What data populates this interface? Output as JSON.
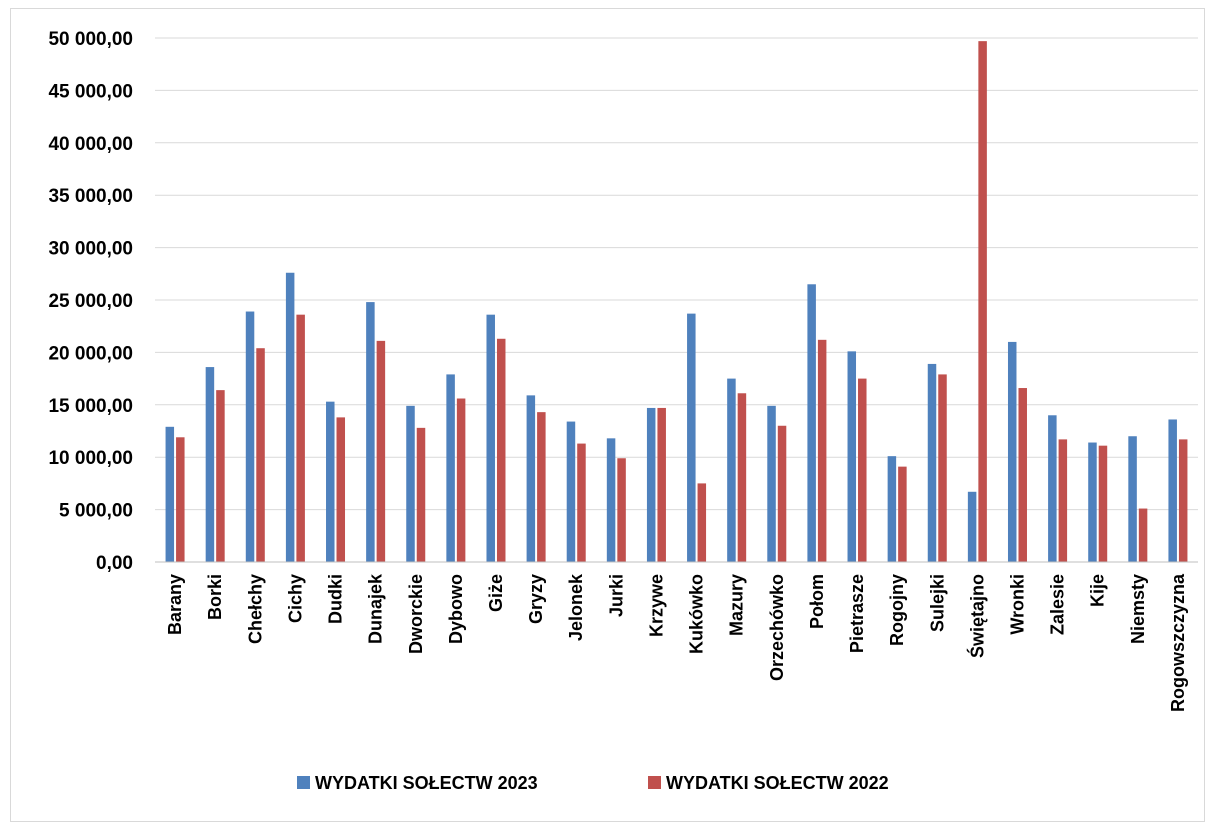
{
  "chart_data": {
    "type": "bar",
    "categories": [
      "Barany",
      "Borki",
      "Chełchy",
      "Cichy",
      "Dudki",
      "Dunajek",
      "Dworckie",
      "Dybowo",
      "Giże",
      "Gryzy",
      "Jelonek",
      "Jurki",
      "Krzywe",
      "Kukówko",
      "Mazury",
      "Orzechówko",
      "Połom",
      "Pietrasze",
      "Rogojny",
      "Sulejki",
      "Świętajno",
      "Wronki",
      "Zalesie",
      "Kije",
      "Niemsty",
      "Rogowszczyzna"
    ],
    "series": [
      {
        "name": "WYDATKI SOŁECTW 2023",
        "color": "#4f81bd",
        "values": [
          12900,
          18600,
          23900,
          27600,
          15300,
          24800,
          14900,
          17900,
          23600,
          15900,
          13400,
          11800,
          14700,
          23700,
          17500,
          14900,
          26500,
          20100,
          10100,
          18900,
          6700,
          21000,
          14000,
          11400,
          12000,
          13600
        ]
      },
      {
        "name": "WYDATKI SOŁECTW 2022",
        "color": "#c0504d",
        "values": [
          11900,
          16400,
          20400,
          23600,
          13800,
          21100,
          12800,
          15600,
          21300,
          14300,
          11300,
          9900,
          14700,
          7500,
          16100,
          13000,
          21200,
          17500,
          9100,
          17900,
          49700,
          16600,
          11700,
          11100,
          5100,
          11700
        ]
      }
    ],
    "ylim": [
      0,
      50000
    ],
    "yticks": [
      "0,00",
      "5 000,00",
      "10 000,00",
      "15 000,00",
      "20 000,00",
      "25 000,00",
      "30 000,00",
      "35 000,00",
      "40 000,00",
      "45 000,00",
      "50 000,00"
    ],
    "grid": true,
    "legend_position": "bottom"
  }
}
